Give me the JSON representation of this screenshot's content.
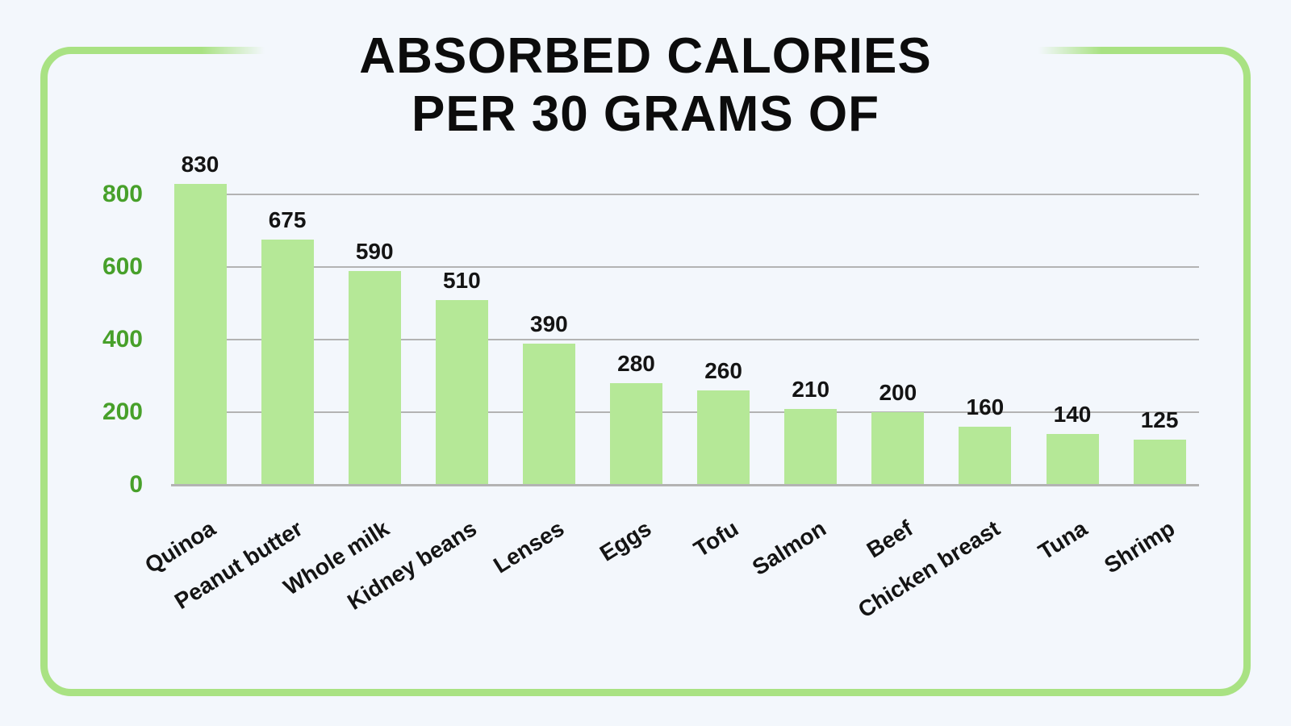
{
  "page": {
    "background_color": "#f3f7fc",
    "card_border_color": "#a9e283"
  },
  "title": {
    "line1": "ABSORBED CALORIES",
    "line2": "PER 30 GRAMS OF"
  },
  "chart_data": {
    "type": "bar",
    "title": "ABSORBED CALORIES PER 30 GRAMS OF",
    "categories": [
      "Quinoa",
      "Peanut butter",
      "Whole milk",
      "Kidney beans",
      "Lenses",
      "Eggs",
      "Tofu",
      "Salmon",
      "Beef",
      "Chicken breast",
      "Tuna",
      "Shrimp"
    ],
    "values": [
      830,
      675,
      590,
      510,
      390,
      280,
      260,
      210,
      200,
      160,
      140,
      125
    ],
    "value_labels": [
      "830",
      "675",
      "590",
      "510",
      "390",
      "280",
      "260",
      "210",
      "200",
      "160",
      "140",
      "125"
    ],
    "xlabel": "",
    "ylabel": "",
    "yticks": [
      0,
      200,
      400,
      600,
      800
    ],
    "ylim": [
      0,
      900
    ],
    "grid": true,
    "legend": false,
    "bar_color": "#b5e897",
    "gridline_color": "#b3b3b3",
    "ytick_label_color": "#47a02a",
    "value_label_color": "#141414",
    "category_label_color": "#141414"
  }
}
